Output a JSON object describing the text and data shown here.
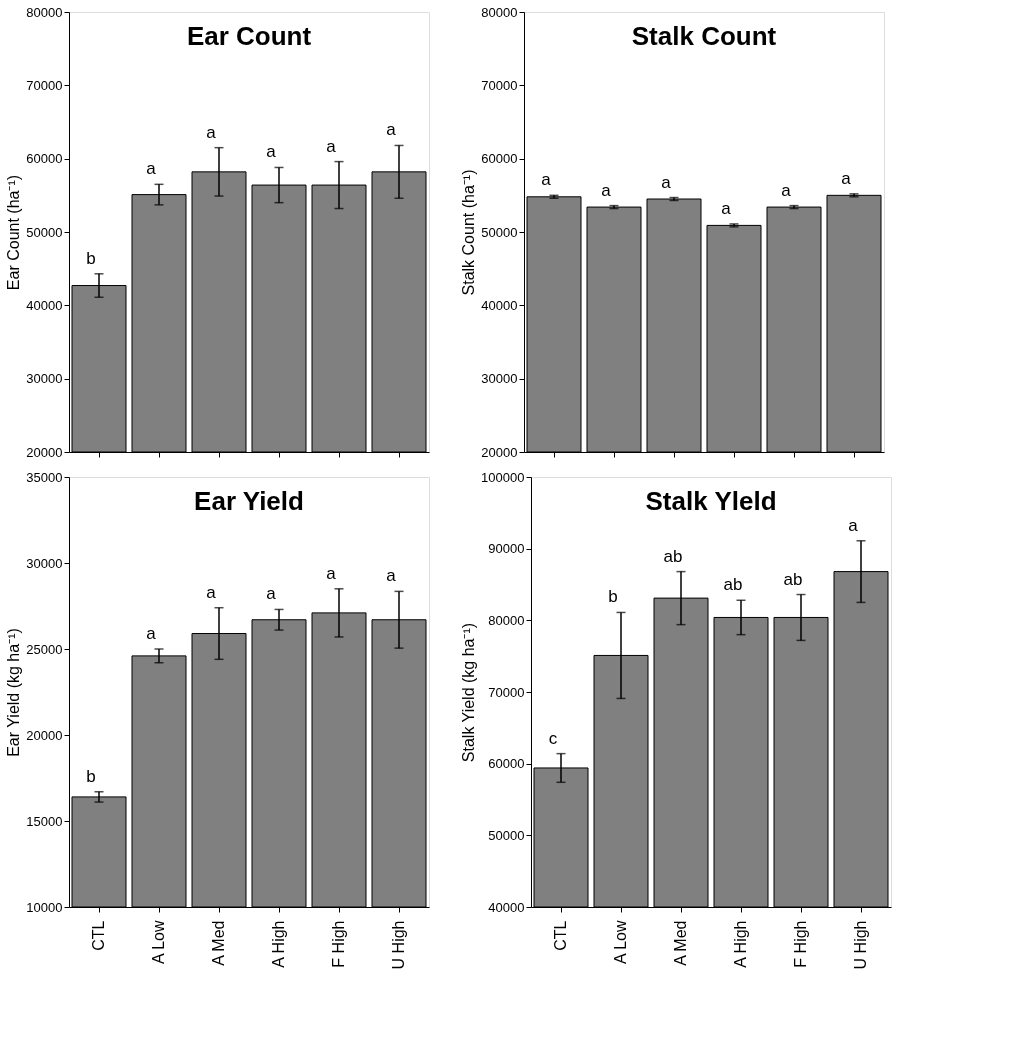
{
  "chart_data": [
    {
      "type": "bar",
      "title": "Ear Count",
      "ylabel": "Ear Count (ha⁻¹)",
      "categories": [
        null,
        null,
        null,
        null,
        null,
        null
      ],
      "tick_labels": "y",
      "values": [
        42700,
        55100,
        58200,
        56400,
        56400,
        58200
      ],
      "color": "#808080",
      "errors": [
        1600,
        1400,
        3300,
        2400,
        3200,
        3600
      ],
      "ylim": [
        20000,
        80000
      ],
      "yticks": [
        20000,
        30000,
        40000,
        50000,
        60000,
        70000,
        80000
      ],
      "grid": false,
      "annotations": [
        "b",
        "a",
        "a",
        "a",
        "a",
        "a"
      ]
    },
    {
      "type": "bar",
      "title": "Stalk Count",
      "ylabel": "Stalk Count (ha⁻¹)",
      "categories": [
        null,
        null,
        null,
        null,
        null,
        null
      ],
      "tick_labels": "y",
      "values": [
        54800,
        53400,
        54500,
        50900,
        53400,
        55000
      ],
      "color": "#808080",
      "errors": [
        200,
        200,
        200,
        200,
        200,
        200
      ],
      "ylim": [
        20000,
        80000
      ],
      "yticks": [
        20000,
        30000,
        40000,
        50000,
        60000,
        70000,
        80000
      ],
      "grid": false,
      "annotations": [
        "a",
        "a",
        "a",
        "a",
        "a",
        "a"
      ]
    },
    {
      "type": "bar",
      "title": "Ear Yield",
      "ylabel": "Ear Yield  (kg ha⁻¹)",
      "categories": [
        "CTL",
        "A Low",
        "A Med",
        "A High",
        "F High",
        "U High"
      ],
      "values": [
        16400,
        24600,
        25900,
        26700,
        27100,
        26700
      ],
      "color": "#808080",
      "errors": [
        300,
        400,
        1500,
        600,
        1400,
        1650
      ],
      "ylim": [
        10000,
        35000
      ],
      "yticks": [
        10000,
        15000,
        20000,
        25000,
        30000,
        35000
      ],
      "grid": false,
      "annotations": [
        "b",
        "a",
        "a",
        "a",
        "a",
        "a"
      ]
    },
    {
      "type": "bar",
      "title": "Stalk Yleld",
      "ylabel": "Stalk Yield (kg ha⁻¹)",
      "categories": [
        "CTL",
        "A Low",
        "A Med",
        "A High",
        "F High",
        "U High"
      ],
      "values": [
        59400,
        75100,
        83100,
        80400,
        80400,
        86800
      ],
      "color": "#808080",
      "errors": [
        2000,
        6000,
        3700,
        2400,
        3200,
        4300
      ],
      "ylim": [
        40000,
        100000
      ],
      "yticks": [
        40000,
        50000,
        60000,
        70000,
        80000,
        90000,
        100000
      ],
      "grid": false,
      "annotations": [
        "c",
        "b",
        "ab",
        "ab",
        "ab",
        "a"
      ]
    }
  ]
}
